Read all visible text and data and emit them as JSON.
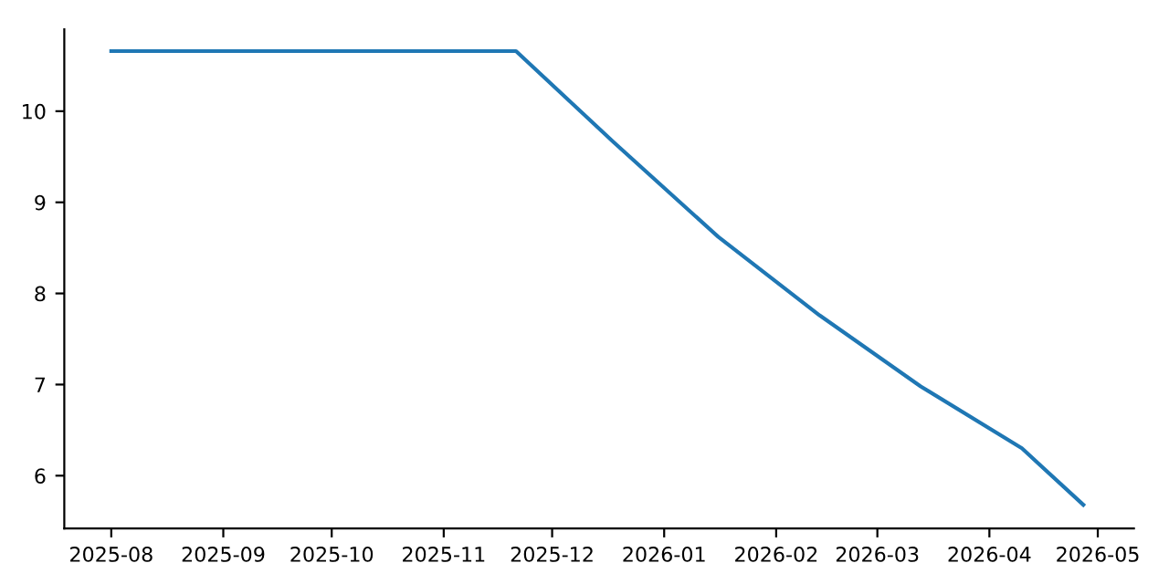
{
  "chart_data": {
    "type": "line",
    "x": [
      "2025-08-01",
      "2025-11-21",
      "2025-12-18",
      "2026-01-16",
      "2026-02-13",
      "2026-03-13",
      "2026-04-10",
      "2026-04-27"
    ],
    "series": [
      {
        "color": "#1f77b4",
        "values": [
          10.66,
          10.66,
          9.66,
          8.62,
          7.76,
          6.98,
          6.3,
          5.68
        ]
      }
    ],
    "xlim": [
      "2025-07-19",
      "2026-05-11"
    ],
    "xticks": [
      "2025-08",
      "2025-09",
      "2025-10",
      "2025-11",
      "2025-12",
      "2026-01",
      "2026-02",
      "2026-03",
      "2026-04",
      "2026-05"
    ],
    "ylim": [
      5.42,
      10.9
    ],
    "yticks": [
      6,
      7,
      8,
      9,
      10
    ],
    "grid": false,
    "legend": false,
    "marker": "none",
    "line_style": "solid"
  }
}
